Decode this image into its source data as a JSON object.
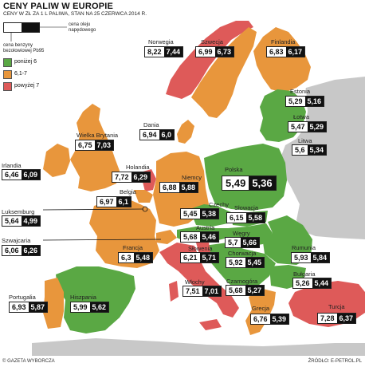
{
  "title": "CENY PALIW W EUROPIE",
  "subtitle": "CENY W ZŁ ZA 1 L PALIWA, STAN NA 25 CZERWCA 2014 R.",
  "key": {
    "diesel_label": "cena oleju napędowego",
    "pb95_label": "cena benzyny bezołowiowej Pb95"
  },
  "legend": [
    {
      "label": "poniżej 6",
      "color": "#5aa844"
    },
    {
      "label": "6,1-7",
      "color": "#e8963c"
    },
    {
      "label": "powyżej 7",
      "color": "#de5a59"
    }
  ],
  "countries": [
    {
      "name": "Norwegia",
      "pb95": "8,22",
      "diesel": "7,44",
      "category": "powyżej 7"
    },
    {
      "name": "Szwecja",
      "pb95": "6,99",
      "diesel": "6,73",
      "category": "6,1-7"
    },
    {
      "name": "Finlandia",
      "pb95": "6,83",
      "diesel": "6,17",
      "category": "6,1-7"
    },
    {
      "name": "Estonia",
      "pb95": "5,29",
      "diesel": "5,16",
      "category": "poniżej 6"
    },
    {
      "name": "Łotwa",
      "pb95": "5,47",
      "diesel": "5,29",
      "category": "poniżej 6"
    },
    {
      "name": "Litwa",
      "pb95": "5,6",
      "diesel": "5,34",
      "category": "poniżej 6"
    },
    {
      "name": "Dania",
      "pb95": "6,94",
      "diesel": "6,0",
      "category": "6,1-7"
    },
    {
      "name": "Wielka Brytania",
      "pb95": "6,75",
      "diesel": "7,03",
      "category": "6,1-7"
    },
    {
      "name": "Irlandia",
      "pb95": "6,46",
      "diesel": "6,09",
      "category": "6,1-7"
    },
    {
      "name": "Holandia",
      "pb95": "7,72",
      "diesel": "6,29",
      "category": "powyżej 7"
    },
    {
      "name": "Belgia",
      "pb95": "6,97",
      "diesel": "6,1",
      "category": "6,1-7"
    },
    {
      "name": "Luksemburg",
      "pb95": "5,64",
      "diesel": "4,99",
      "category": "poniżej 6"
    },
    {
      "name": "Niemcy",
      "pb95": "6,88",
      "diesel": "5,88",
      "category": "6,1-7"
    },
    {
      "name": "Polska",
      "pb95": "5,49",
      "diesel": "5,36",
      "category": "poniżej 6"
    },
    {
      "name": "Czechy",
      "pb95": "5,45",
      "diesel": "5,38",
      "category": "poniżej 6"
    },
    {
      "name": "Słowacja",
      "pb95": "6,15",
      "diesel": "5,58",
      "category": "6,1-7"
    },
    {
      "name": "Szwajcaria",
      "pb95": "6,06",
      "diesel": "6,26",
      "category": "6,1-7"
    },
    {
      "name": "Austria",
      "pb95": "5,68",
      "diesel": "5,46",
      "category": "poniżej 6"
    },
    {
      "name": "Węgry",
      "pb95": "5,7",
      "diesel": "5,66",
      "category": "poniżej 6"
    },
    {
      "name": "Rumunia",
      "pb95": "5,93",
      "diesel": "5,84",
      "category": "poniżej 6"
    },
    {
      "name": "Francja",
      "pb95": "6,3",
      "diesel": "5,48",
      "category": "6,1-7"
    },
    {
      "name": "Słowenia",
      "pb95": "6,21",
      "diesel": "5,71",
      "category": "6,1-7"
    },
    {
      "name": "Chorwacja",
      "pb95": "5,92",
      "diesel": "5,45",
      "category": "poniżej 6"
    },
    {
      "name": "Bułgaria",
      "pb95": "5,26",
      "diesel": "5,44",
      "category": "poniżej 6"
    },
    {
      "name": "Czarnogóra",
      "pb95": "5,68",
      "diesel": "5,27",
      "category": "poniżej 6"
    },
    {
      "name": "Portugalia",
      "pb95": "6,93",
      "diesel": "5,87",
      "category": "6,1-7"
    },
    {
      "name": "Hiszpania",
      "pb95": "5,99",
      "diesel": "5,62",
      "category": "poniżej 6"
    },
    {
      "name": "Włochy",
      "pb95": "7,51",
      "diesel": "7,01",
      "category": "powyżej 7"
    },
    {
      "name": "Grecja",
      "pb95": "6,76",
      "diesel": "5,39",
      "category": "6,1-7"
    },
    {
      "name": "Turcja",
      "pb95": "7,28",
      "diesel": "6,37",
      "category": "powyżej 7"
    }
  ],
  "footer": {
    "credit": "© GAZETA WYBORCZA",
    "source": "ŹRÓDŁO: E-PETROL.PL"
  }
}
